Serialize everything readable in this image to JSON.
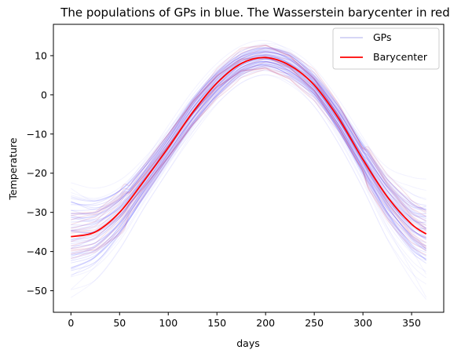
{
  "chart_data": {
    "type": "line",
    "title": "The populations of GPs in blue. The Wasserstein barycenter in red",
    "xlabel": "days",
    "ylabel": "Temperature",
    "xlim": [
      -18,
      383
    ],
    "ylim": [
      -55.5,
      18
    ],
    "x_ticks": [
      0,
      50,
      100,
      150,
      200,
      250,
      300,
      350
    ],
    "y_ticks": [
      -50,
      -40,
      -30,
      -20,
      -10,
      0,
      10
    ],
    "grid": false,
    "legend_position": "top-right",
    "legend": [
      {
        "label": "GPs",
        "color": "#c8c8f4"
      },
      {
        "label": "Barycenter",
        "color": "#ff0000"
      }
    ],
    "colors": {
      "gps": "#0000ff",
      "barycenter": "#ff0000",
      "band": "#b40050"
    },
    "series": [
      {
        "name": "Barycenter",
        "x": [
          0,
          25,
          50,
          75,
          100,
          125,
          150,
          175,
          200,
          225,
          250,
          275,
          300,
          325,
          350,
          365
        ],
        "y": [
          -36.2,
          -35.0,
          -30.0,
          -22.0,
          -13.5,
          -4.5,
          3.0,
          8.0,
          9.5,
          7.5,
          2.5,
          -6.0,
          -16.5,
          -26.0,
          -33.0,
          -35.5
        ]
      },
      {
        "name": "GPs",
        "x": [
          0,
          25,
          50,
          75,
          100,
          125,
          150,
          175,
          200,
          225,
          250,
          275,
          300,
          325,
          350,
          365
        ],
        "y_upper": [
          -21.0,
          -23.5,
          -21.5,
          -15.5,
          -7.5,
          1.0,
          8.0,
          12.5,
          14.0,
          12.0,
          7.0,
          -1.0,
          -10.0,
          -18.0,
          -21.0,
          -21.5
        ],
        "y_lower": [
          -52.0,
          -47.5,
          -39.5,
          -29.0,
          -19.5,
          -10.5,
          -2.5,
          3.0,
          5.0,
          2.5,
          -3.0,
          -12.5,
          -24.0,
          -37.0,
          -47.5,
          -52.5
        ],
        "core_upper": [
          -26.0,
          -27.0,
          -24.5,
          -18.0,
          -10.0,
          -1.0,
          6.0,
          10.5,
          12.0,
          10.5,
          5.0,
          -3.0,
          -12.5,
          -21.5,
          -27.0,
          -28.0
        ],
        "core_lower": [
          -46.0,
          -43.0,
          -36.0,
          -26.5,
          -17.0,
          -8.0,
          -0.5,
          5.0,
          7.0,
          4.5,
          -0.5,
          -9.5,
          -20.5,
          -31.5,
          -40.0,
          -43.0
        ]
      }
    ]
  }
}
